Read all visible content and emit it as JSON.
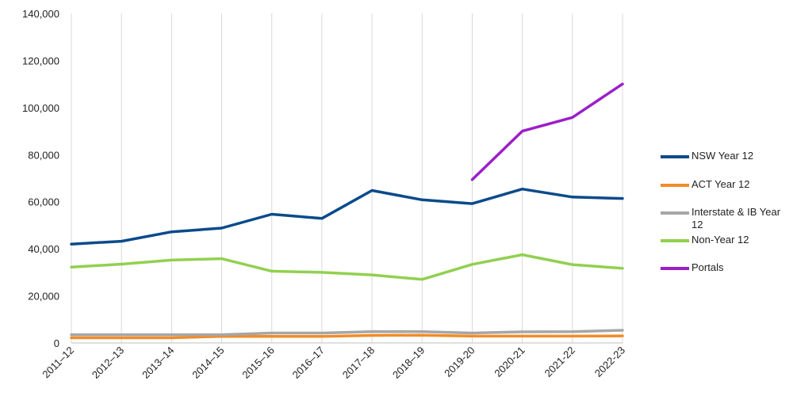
{
  "chart_data": {
    "type": "line",
    "title": "",
    "xlabel": "",
    "ylabel": "",
    "categories": [
      "2011–12",
      "2012–13",
      "2013–14",
      "2014–15",
      "2015–16",
      "2016–17",
      "2017–18",
      "2018–19",
      "2019-20",
      "2020-21",
      "2021-22",
      "2022-23"
    ],
    "ylim": [
      0,
      140000
    ],
    "yticks": [
      0,
      20000,
      40000,
      60000,
      80000,
      100000,
      120000,
      140000
    ],
    "ytick_labels": [
      "0",
      "20,000",
      "40,000",
      "60,000",
      "80,000",
      "100,000",
      "120,000",
      "140,000"
    ],
    "grid": "vertical",
    "legend_position": "right",
    "series": [
      {
        "name": "NSW Year 12",
        "color": "#0b4a8b",
        "values": [
          42000,
          43200,
          47200,
          48800,
          54700,
          52900,
          64800,
          60800,
          59200,
          65400,
          62000,
          61400
        ]
      },
      {
        "name": "ACT Year 12",
        "color": "#f28c28",
        "values": [
          2200,
          2200,
          2200,
          2800,
          2800,
          2800,
          3200,
          3300,
          2900,
          2900,
          2900,
          3000
        ]
      },
      {
        "name": "Interstate & IB Year 12",
        "color": "#a6a6a6",
        "values": [
          3500,
          3500,
          3500,
          3500,
          4200,
          4200,
          4800,
          4800,
          4200,
          4700,
          4800,
          5400
        ]
      },
      {
        "name": "Non-Year 12",
        "color": "#92d050",
        "values": [
          32200,
          33500,
          35200,
          35800,
          30500,
          30000,
          28900,
          27000,
          33400,
          37500,
          33300,
          31700
        ]
      },
      {
        "name": "Portals",
        "color": "#9b1fc9",
        "values": [
          null,
          null,
          null,
          null,
          null,
          null,
          null,
          null,
          69400,
          90000,
          95800,
          110000
        ]
      }
    ]
  }
}
